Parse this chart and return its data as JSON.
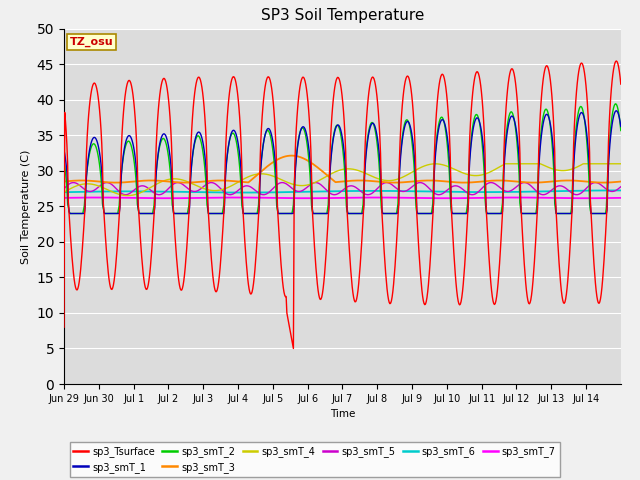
{
  "title": "SP3 Soil Temperature",
  "xlabel": "Time",
  "ylabel": "Soil Temperature (C)",
  "annotation": "TZ_osu",
  "ylim": [
    0,
    50
  ],
  "background_color": "#dcdcdc",
  "legend_entries": [
    {
      "label": "sp3_Tsurface",
      "color": "#ff0000"
    },
    {
      "label": "sp3_smT_1",
      "color": "#0000bb"
    },
    {
      "label": "sp3_smT_2",
      "color": "#00cc00"
    },
    {
      "label": "sp3_smT_3",
      "color": "#ff8800"
    },
    {
      "label": "sp3_smT_4",
      "color": "#cccc00"
    },
    {
      "label": "sp3_smT_5",
      "color": "#cc00cc"
    },
    {
      "label": "sp3_smT_6",
      "color": "#00cccc"
    },
    {
      "label": "sp3_smT_7",
      "color": "#ff00ff"
    }
  ],
  "xtick_labels": [
    "Jun 29",
    "Jun 30",
    "Jul 1",
    "Jul 2",
    "Jul 3",
    "Jul 4",
    "Jul 5",
    "Jul 6",
    "Jul 7",
    "Jul 8",
    "Jul 9",
    "Jul 10",
    "Jul 11",
    "Jul 12",
    "Jul 13",
    "Jul 14"
  ],
  "ytick_values": [
    0,
    5,
    10,
    15,
    20,
    25,
    30,
    35,
    40,
    45,
    50
  ]
}
